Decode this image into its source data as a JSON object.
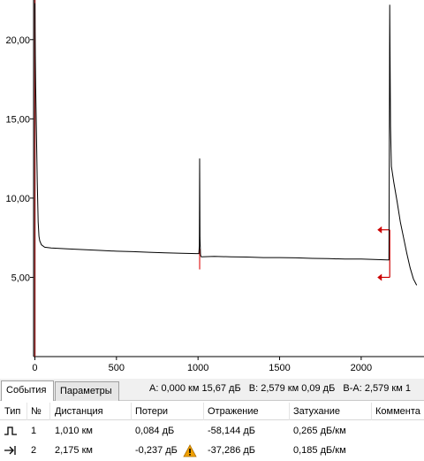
{
  "chart_data": {
    "type": "line",
    "xlim": [
      -8,
      2385
    ],
    "ylim": [
      0,
      22.5
    ],
    "x_ticks": [
      {
        "v": 0,
        "label": "0"
      },
      {
        "v": 500,
        "label": "500"
      },
      {
        "v": 1000,
        "label": "1000"
      },
      {
        "v": 1500,
        "label": "1500"
      },
      {
        "v": 2000,
        "label": "2000"
      }
    ],
    "y_ticks": [
      {
        "v": 5,
        "label": "5,00"
      },
      {
        "v": 10,
        "label": "10,00"
      },
      {
        "v": 15,
        "label": "15,00"
      },
      {
        "v": 20,
        "label": "20,00"
      }
    ],
    "trace": [
      [
        0,
        22.3
      ],
      [
        1,
        20.5
      ],
      [
        5,
        17.0
      ],
      [
        10,
        14.0
      ],
      [
        15,
        11.0
      ],
      [
        20,
        8.5
      ],
      [
        25,
        7.6
      ],
      [
        30,
        7.3
      ],
      [
        40,
        7.05
      ],
      [
        60,
        6.9
      ],
      [
        100,
        6.85
      ],
      [
        200,
        6.8
      ],
      [
        300,
        6.75
      ],
      [
        400,
        6.7
      ],
      [
        500,
        6.65
      ],
      [
        600,
        6.62
      ],
      [
        700,
        6.58
      ],
      [
        800,
        6.55
      ],
      [
        900,
        6.52
      ],
      [
        990,
        6.5
      ],
      [
        1005,
        6.5
      ],
      [
        1008,
        7.0
      ],
      [
        1010,
        12.5
      ],
      [
        1012,
        7.5
      ],
      [
        1015,
        6.4
      ],
      [
        1020,
        6.3
      ],
      [
        1100,
        6.32
      ],
      [
        1200,
        6.3
      ],
      [
        1300,
        6.28
      ],
      [
        1400,
        6.25
      ],
      [
        1500,
        6.25
      ],
      [
        1600,
        6.23
      ],
      [
        1700,
        6.2
      ],
      [
        1800,
        6.18
      ],
      [
        1900,
        6.15
      ],
      [
        2000,
        6.15
      ],
      [
        2100,
        6.12
      ],
      [
        2160,
        6.1
      ],
      [
        2170,
        6.1
      ],
      [
        2172,
        12.0
      ],
      [
        2175,
        22.2
      ],
      [
        2180,
        14.5
      ],
      [
        2185,
        12.0
      ],
      [
        2200,
        11.0
      ],
      [
        2220,
        9.8
      ],
      [
        2240,
        8.5
      ],
      [
        2260,
        7.5
      ],
      [
        2280,
        6.5
      ],
      [
        2300,
        5.6
      ],
      [
        2320,
        4.9
      ],
      [
        2340,
        4.5
      ]
    ],
    "markers": [
      {
        "kind": "origin-line",
        "x": 0,
        "color": "#8b1a1a"
      },
      {
        "kind": "event-line",
        "x": 1010,
        "y1": 5.5,
        "y2": 6.8,
        "color": "#e02020"
      },
      {
        "kind": "bracket",
        "x": 2175,
        "y_top": 8.0,
        "y_bottom": 5.0,
        "color": "#cc0000"
      }
    ],
    "colors": {
      "trace": "#000000",
      "axis": "#000000",
      "marker": "#cc0000"
    }
  },
  "tabs": {
    "events": "События",
    "params": "Параметры"
  },
  "readout": {
    "a": "A: 0,000 км  15,67 дБ",
    "b": "B: 2,579 км  0,09 дБ",
    "ba": "B-A: 2,579 км  1"
  },
  "table": {
    "columns": [
      "Тип",
      "№",
      "Дистанция",
      "Потери",
      "Отражение",
      "Затухание",
      "Коммента"
    ],
    "rows": [
      {
        "type_icon": "reflective-event-icon",
        "num": "1",
        "distance": "1,010 км",
        "loss": "0,084 дБ",
        "warning": false,
        "reflection": "-58,144 дБ",
        "attenuation": "0,265 дБ/км",
        "comment": ""
      },
      {
        "type_icon": "end-of-fiber-icon",
        "num": "2",
        "distance": "2,175 км",
        "loss": "-0,237 дБ",
        "warning": true,
        "reflection": "-37,286 дБ",
        "attenuation": "0,185 дБ/км",
        "comment": ""
      }
    ]
  }
}
